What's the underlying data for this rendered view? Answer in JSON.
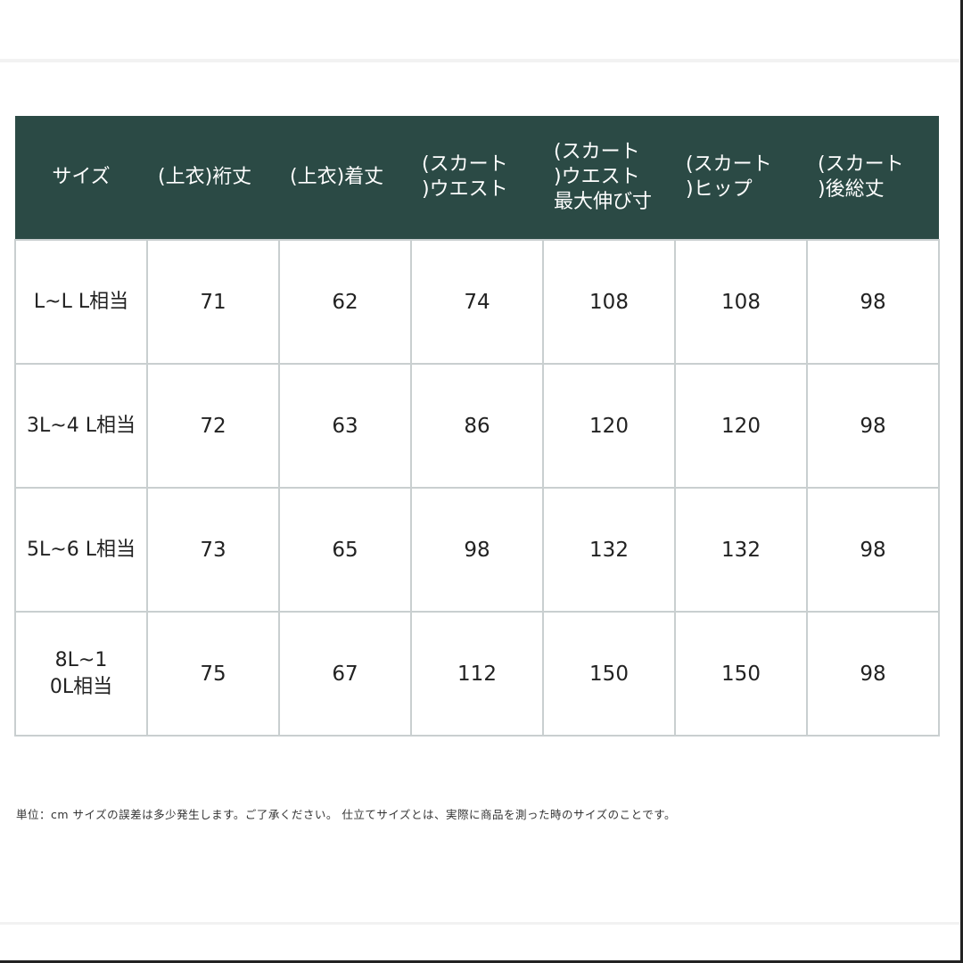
{
  "table": {
    "header_color": "#2b4a45",
    "headers": [
      "サイズ",
      "(上衣)裄丈",
      "(上衣)着丈",
      "(スカート\n)ウエスト",
      "(スカート\n)ウエスト\n最大伸び寸",
      "(スカート\n)ヒップ",
      "(スカート\n)後総丈"
    ],
    "rows": [
      [
        "L~L L相当",
        "71",
        "62",
        "74",
        "108",
        "108",
        "98"
      ],
      [
        "3L~4 L相当",
        "72",
        "63",
        "86",
        "120",
        "120",
        "98"
      ],
      [
        "5L~6 L相当",
        "73",
        "65",
        "98",
        "132",
        "132",
        "98"
      ],
      [
        "8L~1\n0L相当",
        "75",
        "67",
        "112",
        "150",
        "150",
        "98"
      ]
    ]
  },
  "note": "単位：cm サイズの誤差は多少発生します。ご了承ください。 仕立てサイズとは、実際に商品を測った時のサイズのことです。"
}
